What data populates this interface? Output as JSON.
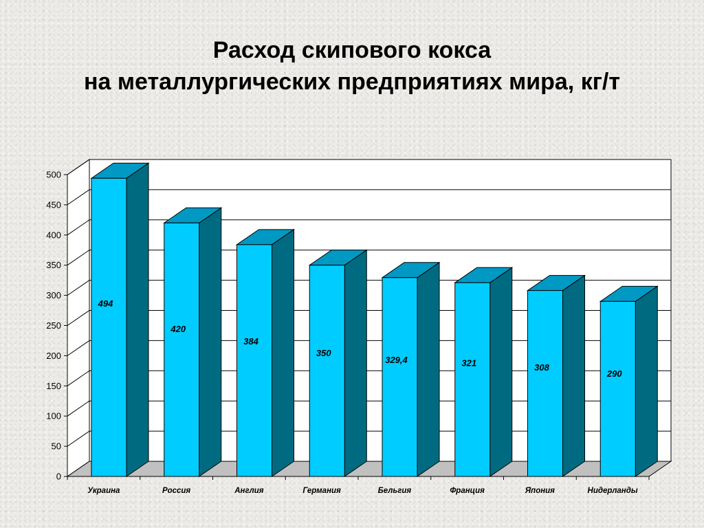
{
  "slide": {
    "title_line1": "Расход скипового кокса",
    "title_line2": "на металлургических предприятиях мира, кг/т"
  },
  "colors": {
    "bar_front": "#00ccff",
    "bar_side": "#006b80",
    "bar_top": "#0099c4",
    "floor": "#c0c0c0",
    "plot_wall": "#ffffff",
    "gridline": "#000000"
  },
  "chart_data": {
    "type": "bar",
    "categories": [
      "Украина",
      "Россия",
      "Англия",
      "Германия",
      "Бельгия",
      "Франция",
      "Япония",
      "Нидерланды"
    ],
    "values": [
      494,
      420,
      384,
      350,
      329.4,
      321,
      308,
      290
    ],
    "value_labels": [
      "494",
      "420",
      "384",
      "350",
      "329,4",
      "321",
      "308",
      "290"
    ],
    "y_ticks": [
      "0",
      "50",
      "100",
      "150",
      "200",
      "250",
      "300",
      "350",
      "400",
      "450",
      "500"
    ],
    "ylim": [
      0,
      500
    ],
    "grid": true,
    "legend": "none",
    "style": "3d-column"
  }
}
